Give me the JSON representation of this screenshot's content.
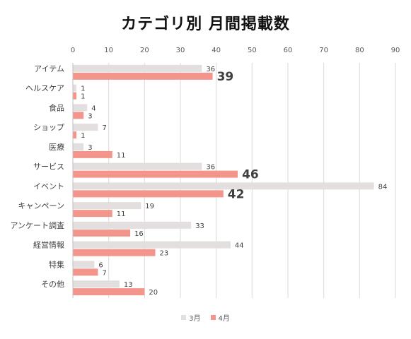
{
  "chart_data": {
    "type": "bar",
    "orientation": "horizontal",
    "title": "カテゴリ別 月間掲載数",
    "categories": [
      "アイテム",
      "ヘルスケア",
      "食品",
      "ショップ",
      "医療",
      "サービス",
      "イベント",
      "キャンペーン",
      "アンケート調査",
      "経営情報",
      "特集",
      "その他"
    ],
    "series": [
      {
        "name": "3月",
        "color": "#e3dfdf",
        "values": [
          36,
          1,
          4,
          7,
          3,
          36,
          84,
          19,
          33,
          44,
          6,
          13
        ]
      },
      {
        "name": "4月",
        "color": "#f4958c",
        "values": [
          39,
          1,
          3,
          1,
          11,
          46,
          42,
          11,
          16,
          23,
          7,
          20
        ]
      }
    ],
    "emphasized_labels": [
      {
        "series": 1,
        "category": 0
      },
      {
        "series": 1,
        "category": 5
      },
      {
        "series": 1,
        "category": 6
      }
    ],
    "xlim": [
      0,
      90
    ],
    "x_ticks": [
      0,
      10,
      20,
      30,
      40,
      50,
      60,
      70,
      80,
      90
    ],
    "x_axis_position": "top",
    "grid": true,
    "legend_position": "bottom"
  }
}
